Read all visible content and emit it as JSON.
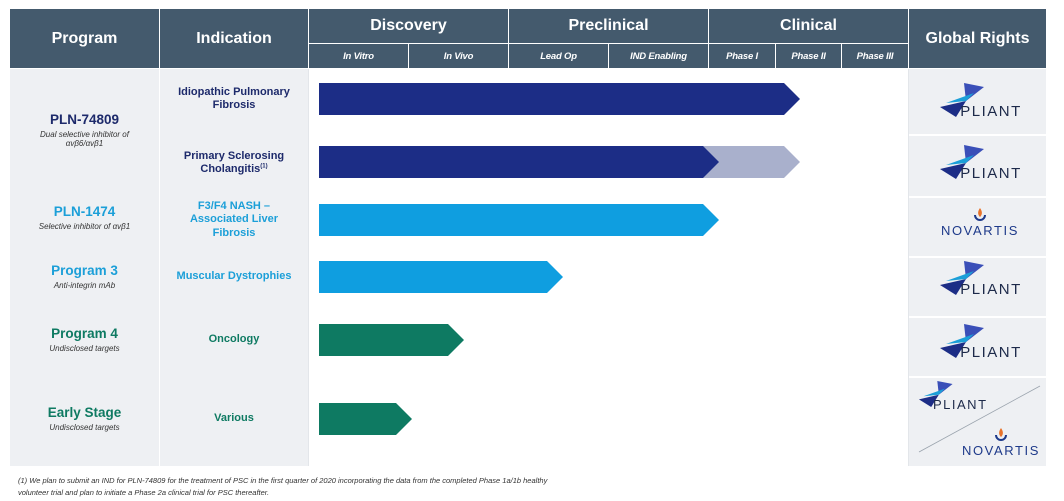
{
  "header": {
    "program": "Program",
    "indication": "Indication",
    "discovery": "Discovery",
    "preclinical": "Preclinical",
    "clinical": "Clinical",
    "global_rights": "Global Rights",
    "stages": [
      "In Vitro",
      "In Vivo",
      "Lead Op",
      "IND Enabling",
      "Phase I",
      "Phase II",
      "Phase III"
    ]
  },
  "colors": {
    "header_bg": "#445a6d",
    "navy": "#1c2d86",
    "navy_light": "#a9b0cc",
    "sky": "#0f9ee0",
    "green": "#0e7a62",
    "navy_text": "#1d2a6b",
    "sky_text": "#1b9fd8",
    "green_text": "#0e7a62"
  },
  "rows": [
    {
      "program": "PLN-74809",
      "desc": "Dual selective inhibitor of αvβ6/αvβ1",
      "indication": "Idiopathic Pulmonary Fibrosis",
      "progress_stage": "Phase II",
      "rights": "PLIANT"
    },
    {
      "indication": "Primary Sclerosing Cholangitis",
      "indication_note": "(1)",
      "progress_stage": "Phase I",
      "planned_stage": "Phase II",
      "rights": "PLIANT"
    },
    {
      "program": "PLN-1474",
      "desc": "Selective inhibitor of αvβ1",
      "indication": "F3/F4 NASH – Associated Liver Fibrosis",
      "progress_stage": "Phase I",
      "rights": "NOVARTIS"
    },
    {
      "program": "Program 3",
      "desc": "Anti-integrin mAb",
      "indication": "Muscular Dystrophies",
      "progress_stage": "Lead Op",
      "rights": "PLIANT"
    },
    {
      "program": "Program 4",
      "desc": "Undisclosed targets",
      "indication": "Oncology",
      "progress_stage": "In Vivo",
      "rights": "PLIANT"
    },
    {
      "program": "Early Stage",
      "desc": "Undisclosed targets",
      "indication": "Various",
      "progress_stage": "In Vitro",
      "rights_a": "PLIANT",
      "rights_b": "NOVARTIS"
    }
  ],
  "footnote": {
    "line1": "(1) We plan to submit an IND for PLN-74809 for the treatment of PSC in the first quarter of 2020 incorporating the data from the completed Phase 1a/1b healthy",
    "line2": "volunteer trial and plan to initiate a Phase 2a clinical trial for PSC thereafter."
  }
}
